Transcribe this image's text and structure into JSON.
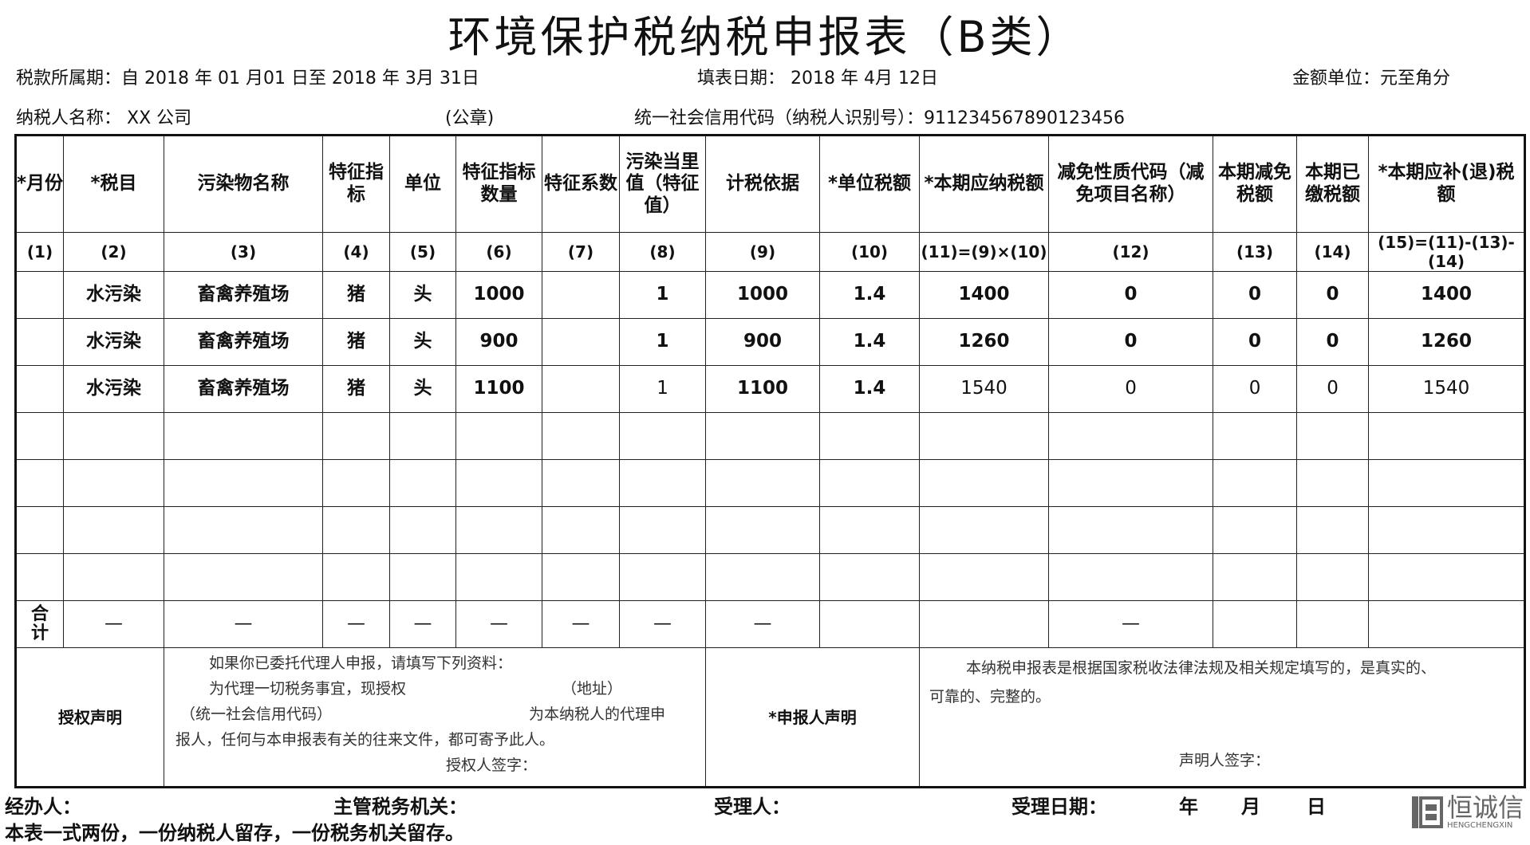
{
  "title": "环境保护税纳税申报表（B类）",
  "info": {
    "period": "税款所属期：自 2018 年 01 月01 日至 2018 年 3月 31日",
    "fill_date": "填表日期： 2018 年 4月  12日",
    "unit": "金额单位：元至角分",
    "taxpayer": "纳税人名称：   XX 公司",
    "seal": "(公章)",
    "credit_code": "统一社会信用代码（纳税人识别号）：911234567890123456"
  },
  "table": {
    "headers": [
      "*月份",
      "*税目",
      "污染物名称",
      "特征指标",
      "单位",
      "特征指标数量",
      "特征系数",
      "污染当里值（特征值）",
      "计税依据",
      "*单位税额",
      "*本期应纳税额",
      "减免性质代码（减免项目名称）",
      "本期减免税额",
      "本期已缴税额",
      "*本期应补(退)税额"
    ],
    "indices": [
      "(1)",
      "(2)",
      "(3)",
      "(4)",
      "(5)",
      "(6)",
      "(7)",
      "(8)",
      "(9)",
      "(10)",
      "(11)=(9)×(10)",
      "(12)",
      "(13)",
      "(14)",
      "(15)=(11)-(13)-(14)"
    ],
    "rows": [
      [
        "",
        "水污染",
        "畜禽养殖场",
        "猪",
        "头",
        "1000",
        "",
        "1",
        "1000",
        "1.4",
        "1400",
        "0",
        "0",
        "0",
        "1400"
      ],
      [
        "",
        "水污染",
        "畜禽养殖场",
        "猪",
        "头",
        "900",
        "",
        "1",
        "900",
        "1.4",
        "1260",
        "0",
        "0",
        "0",
        "1260"
      ],
      [
        "",
        "水污染",
        "畜禽养殖场",
        "猪",
        "头",
        "1100",
        "",
        "1",
        "1100",
        "1.4",
        "1540",
        "0",
        "0",
        "0",
        "1540"
      ],
      [
        "",
        "",
        "",
        "",
        "",
        "",
        "",
        "",
        "",
        "",
        "",
        "",
        "",
        "",
        ""
      ],
      [
        "",
        "",
        "",
        "",
        "",
        "",
        "",
        "",
        "",
        "",
        "",
        "",
        "",
        "",
        ""
      ],
      [
        "",
        "",
        "",
        "",
        "",
        "",
        "",
        "",
        "",
        "",
        "",
        "",
        "",
        "",
        ""
      ],
      [
        "",
        "",
        "",
        "",
        "",
        "",
        "",
        "",
        "",
        "",
        "",
        "",
        "",
        "",
        ""
      ]
    ],
    "total": [
      "合计",
      "—",
      "—",
      "—",
      "—",
      "—",
      "—",
      "—",
      "—",
      "",
      "",
      "—",
      "",
      "",
      ""
    ],
    "auth_label": "授权声明",
    "auth_lines": [
      "如果你已委托代理人申报，请填写下列资料：",
      "为代理一切税务事宜，现授权",
      "（地址）",
      "（统一社会信用代码）",
      "为本纳税人的代理申",
      "报人，任何与本申报表有关的往来文件，都可寄予此人。",
      "授权人签字："
    ],
    "decl_label": "*申报人声明",
    "decl_lines": [
      "本纳税申报表是根据国家税收法律法规及相关规定填写的，是真实的、",
      "可靠的、完整的。",
      "声明人签字："
    ]
  },
  "footer": {
    "handler": "经办人：",
    "authority": "主管税务机关：",
    "receiver": "受理人：",
    "receive_date": "受理日期：",
    "year": "年",
    "month": "月",
    "day": "日",
    "note": "本表一式两份，一份纳税人留存，一份税务机关留存。"
  },
  "logo": {
    "name": "恒诚信",
    "sub": "HENGCHENGXIN"
  }
}
